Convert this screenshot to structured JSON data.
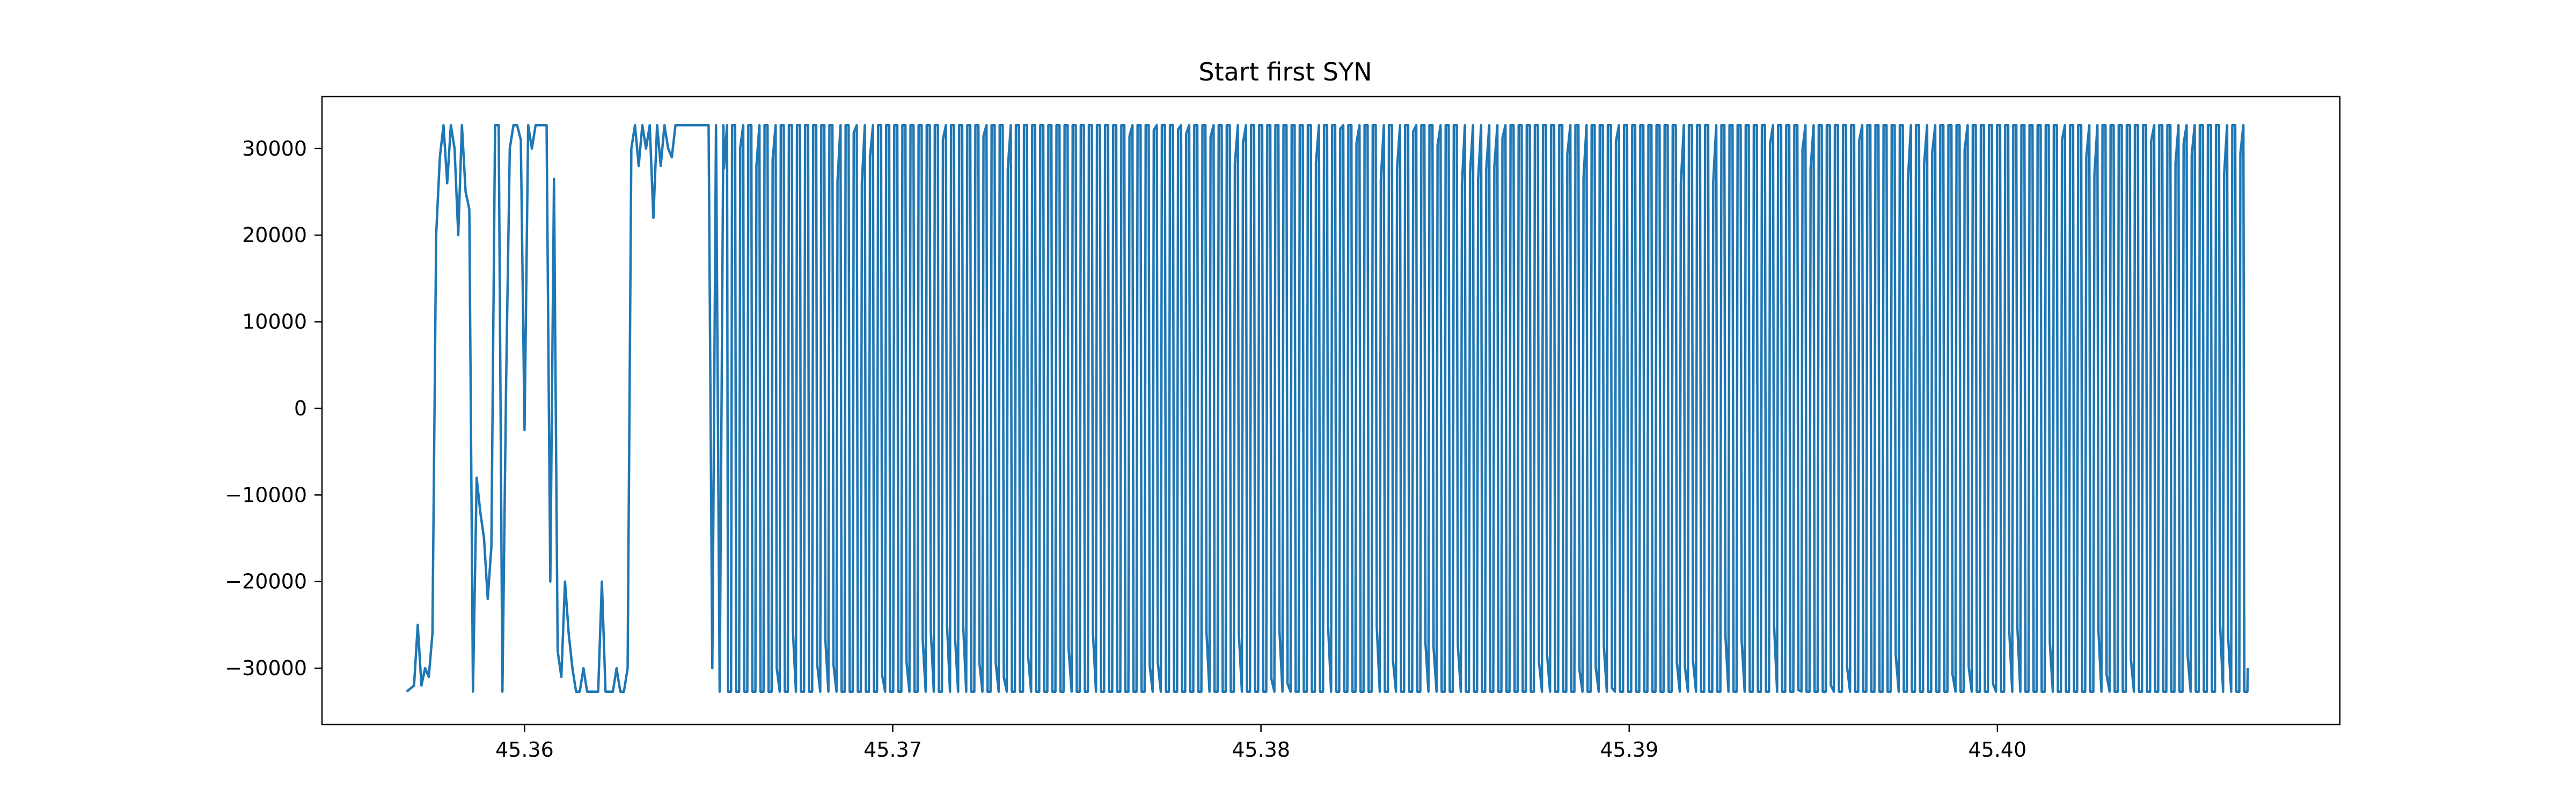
{
  "chart_data": {
    "type": "line",
    "title": "Start first SYN",
    "xlabel": "",
    "ylabel": "",
    "xlim": [
      45.3545,
      45.4093
    ],
    "ylim": [
      -36500,
      36000
    ],
    "x_ticks": [
      45.36,
      45.37,
      45.38,
      45.39,
      45.4
    ],
    "x_tick_labels": [
      "45.36",
      "45.37",
      "45.38",
      "45.39",
      "45.40"
    ],
    "y_ticks": [
      30000,
      20000,
      10000,
      0,
      -10000,
      -20000,
      -30000
    ],
    "y_tick_labels": [
      "30000",
      "20000",
      "10000",
      "0",
      "−10000",
      "−20000",
      "−30000"
    ],
    "grid": false,
    "line_color": "#1f77b4",
    "series": [
      {
        "x": [
          45.3568,
          45.357,
          45.3571,
          45.3572,
          45.3573,
          45.3574,
          45.3575,
          45.3576,
          45.3577,
          45.3578,
          45.3579,
          45.358,
          45.3581,
          45.3582,
          45.3583,
          45.3584,
          45.3585,
          45.3586,
          45.3587,
          45.3588,
          45.3589,
          45.359,
          45.3591,
          45.3592,
          45.3593,
          45.3594,
          45.3595,
          45.3596,
          45.3597,
          45.3598,
          45.3599,
          45.36,
          45.3601,
          45.3602,
          45.3603,
          45.3604,
          45.3606,
          45.3607,
          45.3608,
          45.3609,
          45.361,
          45.3611,
          45.3612,
          45.3613,
          45.3614,
          45.3615,
          45.3616,
          45.3617,
          45.3618,
          45.3619,
          45.362,
          45.3621,
          45.3622,
          45.3623,
          45.3624,
          45.3625,
          45.3626,
          45.3627,
          45.3628,
          45.3629,
          45.363,
          45.3631,
          45.3632,
          45.3633,
          45.3634,
          45.3635,
          45.3636,
          45.3637,
          45.3638,
          45.3639,
          45.364,
          45.3641,
          45.3642,
          45.3643,
          45.3644,
          45.3645,
          45.3646,
          45.3647,
          45.3648,
          45.3649,
          45.365,
          45.3651,
          45.3652,
          45.3653,
          45.3654
        ],
        "y": [
          -32700,
          -32000,
          -25000,
          -32000,
          -30000,
          -31000,
          -26000,
          20000,
          29000,
          32700,
          26000,
          32700,
          30000,
          20000,
          32700,
          25000,
          23000,
          -32700,
          -8000,
          -12000,
          -15000,
          -22000,
          -16000,
          32700,
          32700,
          -32700,
          3000,
          30000,
          32700,
          32700,
          31000,
          -2500,
          32700,
          30000,
          32700,
          32700,
          32700,
          -20000,
          26500,
          -28000,
          -31000,
          -20000,
          -26000,
          -30000,
          -32700,
          -32700,
          -30000,
          -32700,
          -32700,
          -32700,
          -32700,
          -20000,
          -32700,
          -32700,
          -32700,
          -30000,
          -32700,
          -32700,
          -30000,
          30000,
          32700,
          28000,
          32700,
          30000,
          32700,
          22000,
          32700,
          28000,
          32700,
          30000,
          29000,
          32700,
          32700,
          32700,
          32700,
          32700,
          32700,
          32700,
          32700,
          32700,
          32700,
          -30000,
          32700,
          -32700,
          32700
        ]
      }
    ],
    "oscillation": {
      "x_start": 45.3654,
      "x_end": 45.4068,
      "cycles": 188,
      "high": 32700,
      "low": -32700,
      "last_value": -30000
    }
  }
}
